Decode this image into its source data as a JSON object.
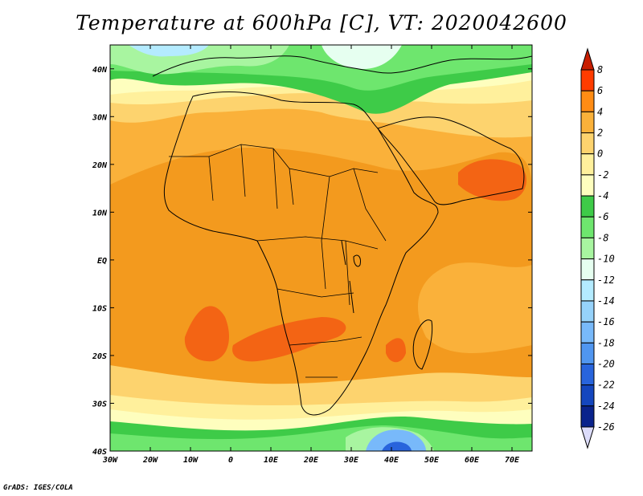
{
  "title": "Temperature at 600hPa [C], VT: 2020042600",
  "credit": "GrADS: IGES/COLA",
  "map": {
    "lon_labels": [
      "30W",
      "20W",
      "10W",
      "0",
      "10E",
      "20E",
      "30E",
      "40E",
      "50E",
      "60E",
      "70E"
    ],
    "lat_labels": [
      "40N",
      "30N",
      "20N",
      "10N",
      "EQ",
      "10S",
      "20S",
      "30S",
      "40S"
    ],
    "lon_range": [
      -30,
      75
    ],
    "lat_range": [
      -40,
      45
    ]
  },
  "colorbar": {
    "labels": [
      "8",
      "6",
      "4",
      "2",
      "0",
      "-2",
      "-4",
      "-6",
      "-8",
      "-10",
      "-12",
      "-14",
      "-16",
      "-18",
      "-20",
      "-22",
      "-24",
      "-26"
    ],
    "colors": [
      "#c81e00",
      "#ff3c00",
      "#ff8c14",
      "#fab13a",
      "#fdd36e",
      "#fff09c",
      "#fefebe",
      "#3ecb48",
      "#6ee66e",
      "#a8f5a0",
      "#e6fff0",
      "#b4ebff",
      "#96d2fa",
      "#78b9fa",
      "#5096f0",
      "#2864dc",
      "#1446be",
      "#0a238c",
      "#000c5a",
      "#dcdcfa"
    ]
  }
}
